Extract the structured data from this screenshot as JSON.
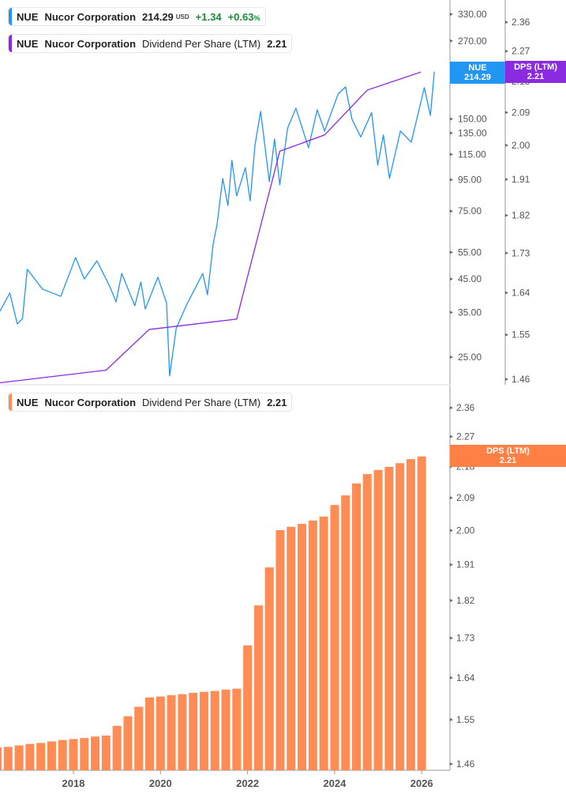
{
  "colors": {
    "price": "#2196f3",
    "dps_line": "#8a2be2",
    "dps_bar": "#ff8c55",
    "positive": "#1a8a3a"
  },
  "legend_price": {
    "ticker": "NUE",
    "name": "Nucor Corporation",
    "price": "214.29",
    "currency": "USD",
    "change": "+1.34",
    "change_pct": "+0.63",
    "pct_sign": "%"
  },
  "legend_dps_top": {
    "ticker": "NUE",
    "name": "Nucor Corporation",
    "metric": "Dividend Per Share (LTM)",
    "value": "2.21"
  },
  "legend_dps_bottom": {
    "ticker": "NUE",
    "name": "Nucor Corporation",
    "metric": "Dividend Per Share (LTM)",
    "value": "2.21"
  },
  "tags": {
    "price": {
      "label": "NUE",
      "value": "214.29"
    },
    "dps_top": {
      "label": "DPS (LTM)",
      "value": "2.21"
    },
    "dps_bottom": {
      "label": "DPS (LTM)",
      "value": "2.21"
    }
  },
  "chart_data": [
    {
      "type": "line",
      "pane": "top",
      "scale": "log",
      "x_ticks": [
        "2018",
        "2020",
        "2022",
        "2024",
        "2026"
      ],
      "series": [
        {
          "name": "NUE",
          "axis": "left-price",
          "x": [
            2016.31,
            2016.54,
            2016.71,
            2016.83,
            2016.94,
            2017.29,
            2017.71,
            2018.05,
            2018.25,
            2018.54,
            2018.83,
            2018.98,
            2019.11,
            2019.41,
            2019.55,
            2019.65,
            2019.94,
            2020.14,
            2020.21,
            2020.36,
            2020.59,
            2020.97,
            2021.08,
            2021.21,
            2021.3,
            2021.43,
            2021.55,
            2021.64,
            2021.75,
            2021.95,
            2022.06,
            2022.17,
            2022.3,
            2022.5,
            2022.62,
            2022.74,
            2022.92,
            2023.11,
            2023.4,
            2023.6,
            2023.77,
            2024.08,
            2024.25,
            2024.4,
            2024.6,
            2024.85,
            2024.99,
            2025.12,
            2025.26,
            2025.51,
            2025.76,
            2026.06,
            2026.2,
            2026.29
          ],
          "y": [
            35.3,
            40.5,
            32.1,
            33.4,
            48.4,
            41.7,
            39.5,
            52.9,
            45.0,
            51.6,
            42.7,
            37.9,
            46.9,
            36.8,
            44.0,
            35.9,
            45.6,
            37.5,
            21.7,
            31.0,
            36.8,
            46.9,
            40.0,
            58.5,
            67.9,
            95.9,
            78.2,
            109.9,
            84.1,
            104.0,
            81.0,
            123.0,
            158.9,
            93.6,
            129.0,
            91.4,
            140.0,
            162.7,
            120.8,
            160.7,
            137.0,
            181.0,
            191.0,
            149.5,
            131.0,
            157.5,
            106.0,
            133.0,
            95.9,
            137.0,
            126.0,
            190.0,
            154.0,
            214.29
          ]
        },
        {
          "name": "Dividend Per Share (LTM)",
          "axis": "right-dps",
          "x": [
            2016.31,
            2018.75,
            2019.74,
            2021.75,
            2022.74,
            2023.77,
            2024.75,
            2025.98
          ],
          "y": [
            1.453,
            1.478,
            1.561,
            1.583,
            1.984,
            2.028,
            2.154,
            2.207
          ]
        }
      ],
      "price_axis_ticks": [
        "330.00",
        "270.00",
        "150.00",
        "135.00",
        "115.00",
        "95.00",
        "75.00",
        "55.00",
        "45.00",
        "35.00",
        "25.00"
      ],
      "dps_axis_ticks": [
        "2.36",
        "2.27",
        "2.18",
        "2.09",
        "2.00",
        "1.91",
        "1.82",
        "1.73",
        "1.64",
        "1.55",
        "1.46"
      ]
    },
    {
      "type": "bar",
      "pane": "bottom",
      "scale": "log",
      "name": "Dividend Per Share (LTM)",
      "x": [
        2016.25,
        2016.5,
        2016.75,
        2017.0,
        2017.25,
        2017.5,
        2017.75,
        2018.0,
        2018.25,
        2018.5,
        2018.75,
        2019.0,
        2019.25,
        2019.5,
        2019.75,
        2020.0,
        2020.25,
        2020.5,
        2020.75,
        2021.0,
        2021.25,
        2021.5,
        2021.75,
        2022.0,
        2022.25,
        2022.5,
        2022.75,
        2023.0,
        2023.25,
        2023.5,
        2023.75,
        2024.0,
        2024.25,
        2024.5,
        2024.75,
        2025.0,
        2025.25,
        2025.5,
        2025.75,
        2026.0
      ],
      "values": [
        1.493,
        1.494,
        1.497,
        1.5,
        1.502,
        1.505,
        1.508,
        1.51,
        1.512,
        1.515,
        1.517,
        1.537,
        1.557,
        1.577,
        1.597,
        1.599,
        1.602,
        1.604,
        1.607,
        1.609,
        1.611,
        1.614,
        1.616,
        1.713,
        1.808,
        1.903,
        2.001,
        2.01,
        2.018,
        2.027,
        2.038,
        2.07,
        2.097,
        2.131,
        2.158,
        2.17,
        2.179,
        2.19,
        2.202,
        2.21
      ],
      "y_ticks": [
        "2.36",
        "2.27",
        "2.18",
        "2.09",
        "2.00",
        "1.91",
        "1.82",
        "1.73",
        "1.64",
        "1.55",
        "1.46"
      ],
      "x_ticks": [
        "2018",
        "2020",
        "2022",
        "2024",
        "2026"
      ]
    }
  ]
}
